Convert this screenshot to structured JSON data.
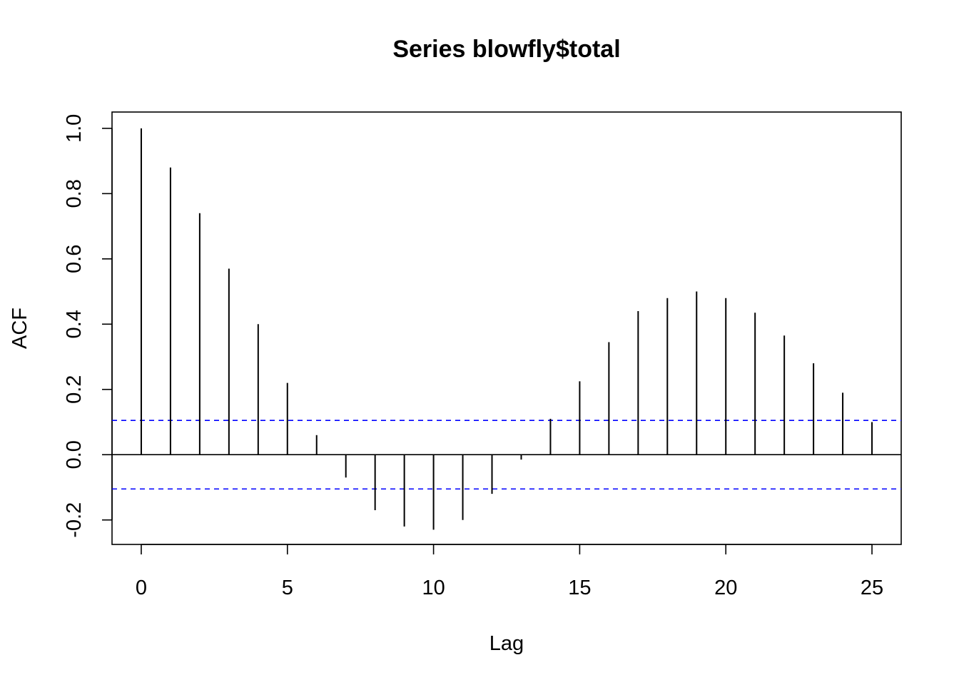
{
  "chart_data": {
    "type": "bar",
    "subtype": "acf",
    "title": "Series  blowfly$total",
    "xlabel": "Lag",
    "ylabel": "ACF",
    "xlim": [
      -1,
      26
    ],
    "ylim": [
      -0.275,
      1.05
    ],
    "x_ticks": [
      0,
      5,
      10,
      15,
      20,
      25
    ],
    "y_ticks": [
      -0.2,
      0.0,
      0.2,
      0.4,
      0.6,
      0.8,
      1.0
    ],
    "x": [
      0,
      1,
      2,
      3,
      4,
      5,
      6,
      7,
      8,
      9,
      10,
      11,
      12,
      13,
      14,
      15,
      16,
      17,
      18,
      19,
      20,
      21,
      22,
      23,
      24,
      25
    ],
    "values": [
      1.0,
      0.88,
      0.74,
      0.57,
      0.4,
      0.22,
      0.06,
      -0.07,
      -0.17,
      -0.22,
      -0.23,
      -0.2,
      -0.12,
      -0.015,
      0.11,
      0.225,
      0.345,
      0.44,
      0.48,
      0.5,
      0.48,
      0.435,
      0.365,
      0.28,
      0.19,
      0.1
    ],
    "confidence_bounds": [
      0.105,
      -0.105
    ],
    "confidence_line_color": "#0000ff",
    "bar_color": "#000000",
    "grid": false,
    "legend": null
  }
}
